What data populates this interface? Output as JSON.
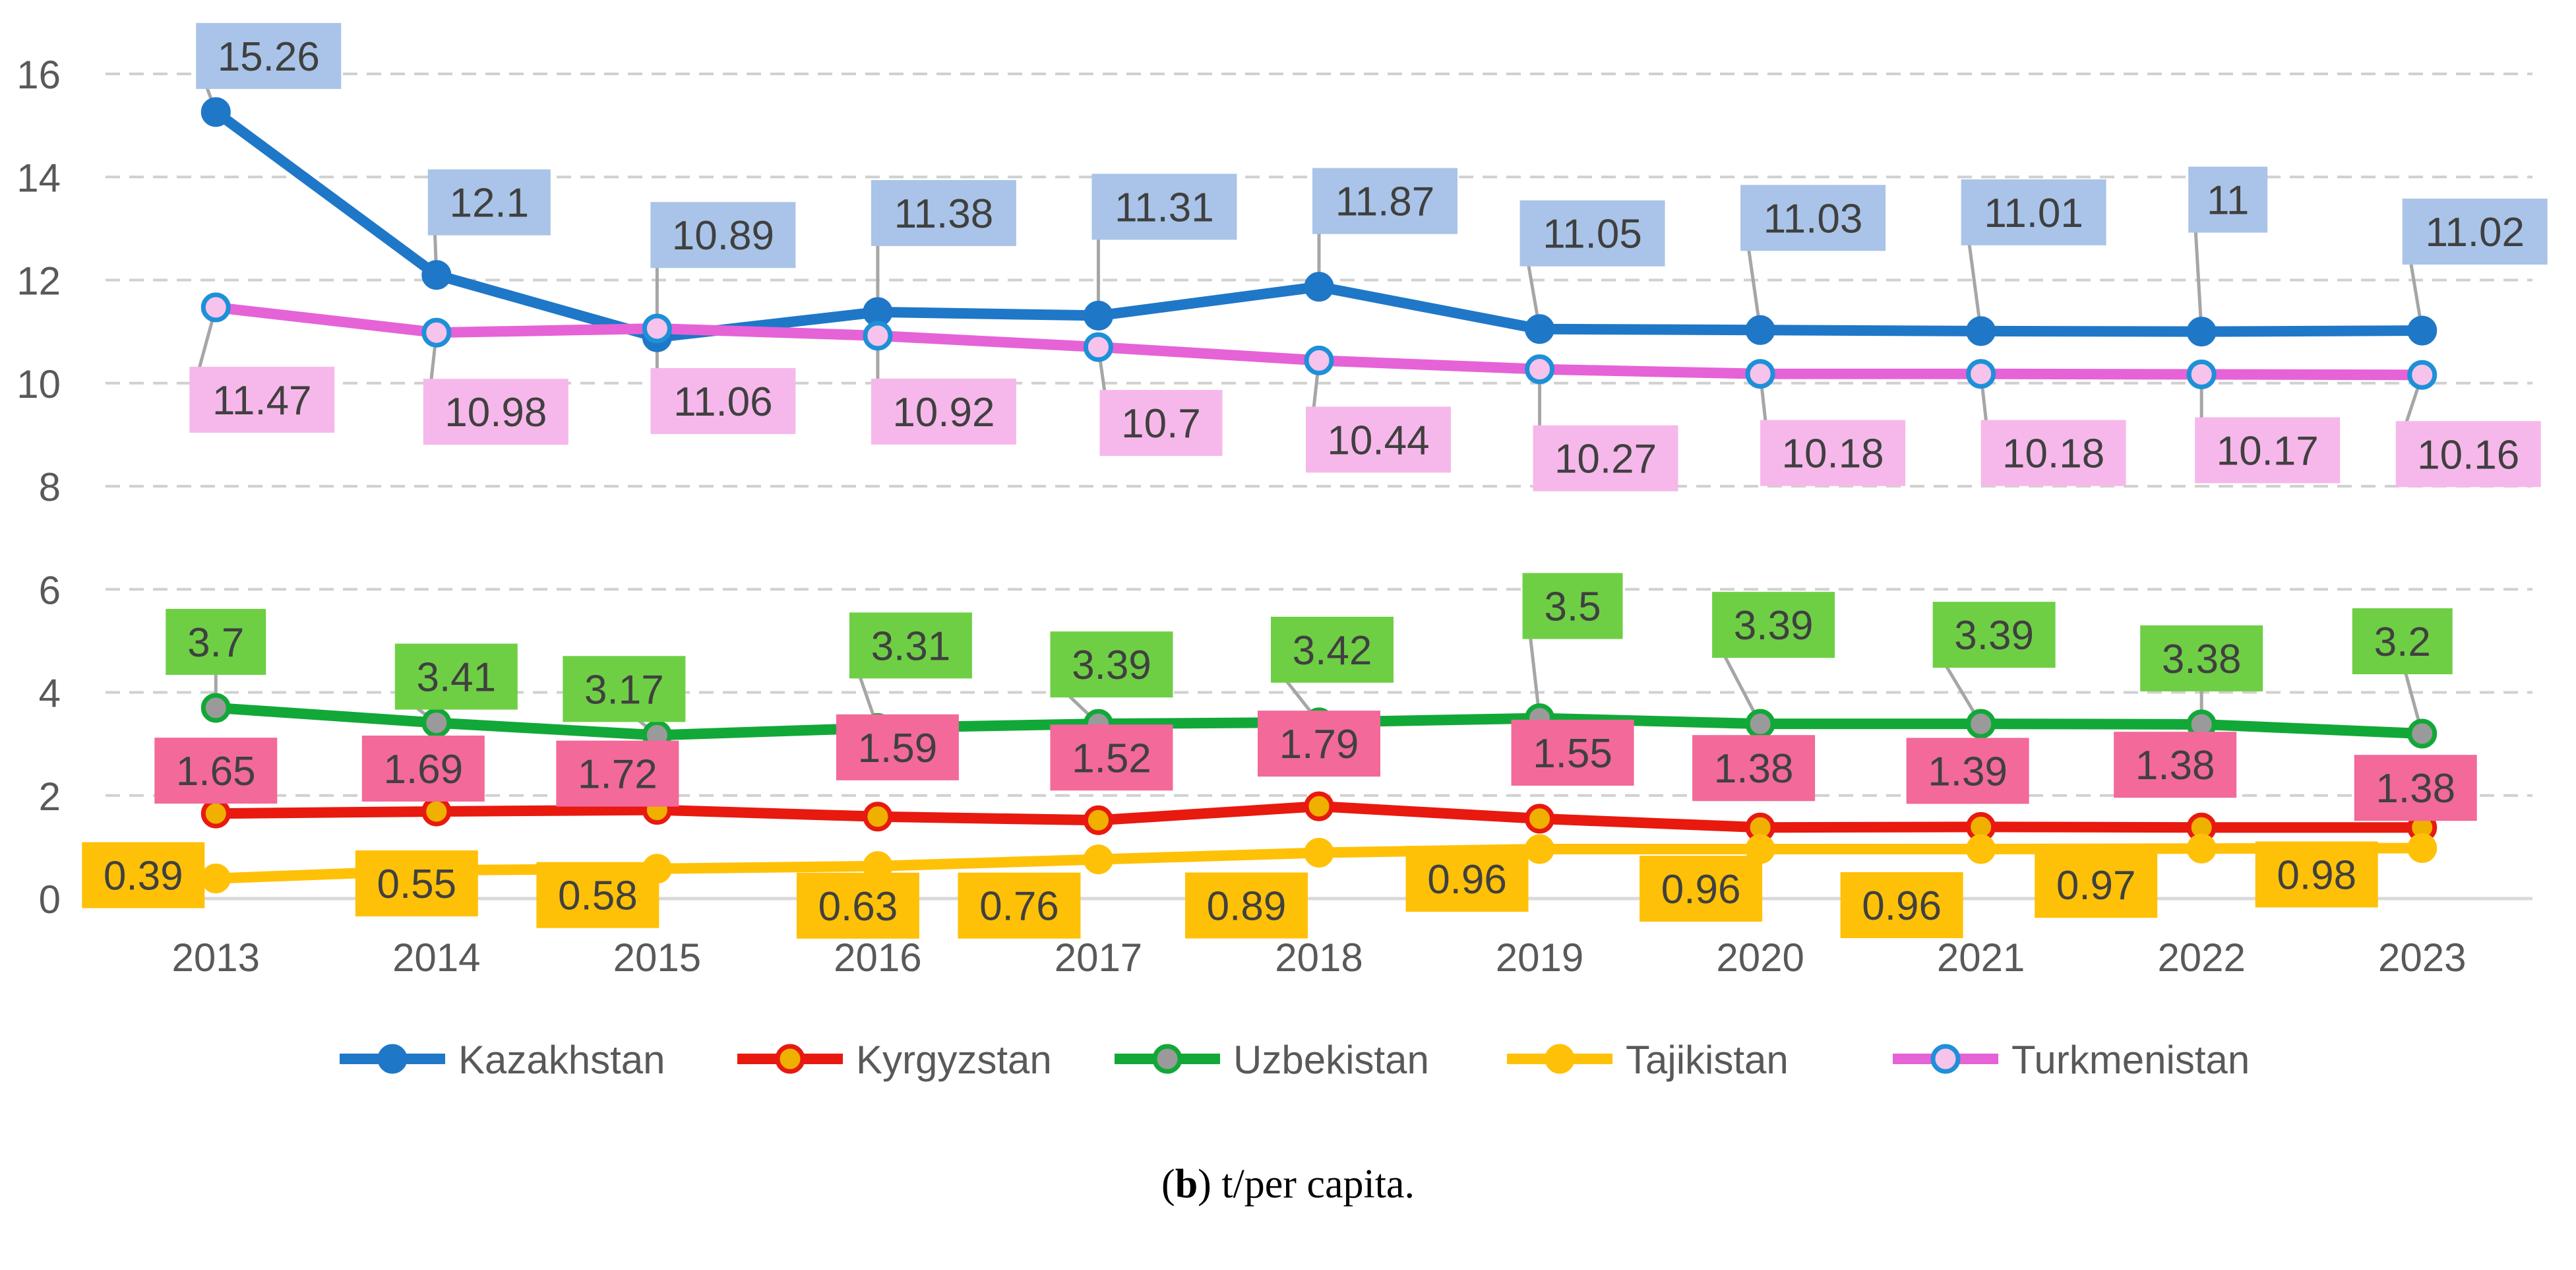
{
  "chart_data": {
    "type": "line",
    "title": "",
    "xlabel": "",
    "ylabel": "",
    "ylim": [
      0,
      16
    ],
    "yticks": [
      "0",
      "2",
      "4",
      "6",
      "8",
      "10",
      "12",
      "14",
      "16"
    ],
    "grid": true,
    "legend_position": "bottom",
    "categories": [
      "2013",
      "2014",
      "2015",
      "2016",
      "2017",
      "2018",
      "2019",
      "2020",
      "2021",
      "2022",
      "2023"
    ],
    "series": [
      {
        "name": "Kazakhstan",
        "color": "#1F77C8",
        "marker_fill": "#1F77C8",
        "marker_stroke": "#1F77C8",
        "label_bg": "#A9C4E8",
        "values": [
          15.26,
          12.1,
          10.89,
          11.38,
          11.31,
          11.87,
          11.05,
          11.03,
          11.01,
          11,
          11.02
        ],
        "labels": [
          "15.26",
          "12.1",
          "10.89",
          "11.38",
          "11.31",
          "11.87",
          "11.05",
          "11.03",
          "11.01",
          "11",
          "11.02"
        ]
      },
      {
        "name": "Kyrgyzstan",
        "color": "#E8190F",
        "marker_fill": "#F0B000",
        "marker_stroke": "#E8190F",
        "label_bg": "#F2699A",
        "values": [
          1.65,
          1.69,
          1.72,
          1.59,
          1.52,
          1.79,
          1.55,
          1.38,
          1.39,
          1.38,
          1.38
        ],
        "labels": [
          "1.65",
          "1.69",
          "1.72",
          "1.59",
          "1.52",
          "1.79",
          "1.55",
          "1.38",
          "1.39",
          "1.38",
          "1.38"
        ]
      },
      {
        "name": "Uzbekistan",
        "color": "#12A838",
        "marker_fill": "#9A9A9A",
        "marker_stroke": "#12A838",
        "label_bg": "#6ECF45",
        "values": [
          3.7,
          3.41,
          3.17,
          3.31,
          3.39,
          3.42,
          3.5,
          3.39,
          3.39,
          3.38,
          3.2
        ],
        "labels": [
          "3.7",
          "3.41",
          "3.17",
          "3.31",
          "3.39",
          "3.42",
          "3.5",
          "3.39",
          "3.39",
          "3.38",
          "3.2"
        ]
      },
      {
        "name": "Tajikistan",
        "color": "#FFC107",
        "marker_fill": "#FFC107",
        "marker_stroke": "#FFC107",
        "label_bg": "#FFC107",
        "values": [
          0.39,
          0.55,
          0.58,
          0.63,
          0.76,
          0.89,
          0.96,
          0.96,
          0.96,
          0.97,
          0.98
        ],
        "labels": [
          "0.39",
          "0.55",
          "0.58",
          "0.63",
          "0.76",
          "0.89",
          "0.96",
          "0.96",
          "0.96",
          "0.97",
          "0.98"
        ]
      },
      {
        "name": "Turkmenistan",
        "color": "#E563D7",
        "marker_fill": "#F6C3EC",
        "marker_stroke": "#1E90D8",
        "label_bg": "#F6B8EA",
        "values": [
          11.47,
          10.98,
          11.06,
          10.92,
          10.7,
          10.44,
          10.27,
          10.18,
          10.18,
          10.17,
          10.16
        ],
        "labels": [
          "11.47",
          "10.98",
          "11.06",
          "10.92",
          "10.7",
          "10.44",
          "10.27",
          "10.18",
          "10.18",
          "10.17",
          "10.16"
        ]
      }
    ]
  },
  "caption": {
    "bold": "b",
    "text": " t/per capita."
  }
}
